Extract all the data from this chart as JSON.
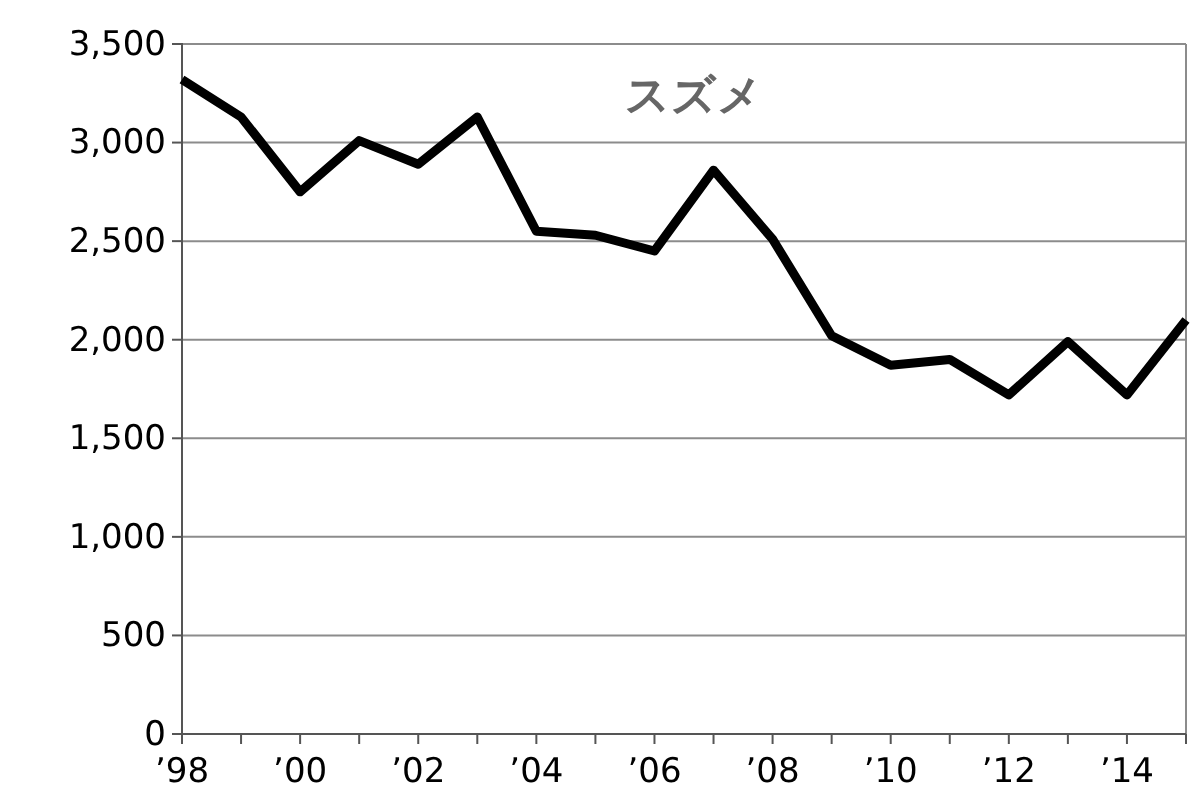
{
  "chart_data": {
    "type": "line",
    "title": "スズメ",
    "x": [
      1998,
      1999,
      2000,
      2001,
      2002,
      2003,
      2004,
      2005,
      2006,
      2007,
      2008,
      2009,
      2010,
      2011,
      2012,
      2013,
      2014,
      2015
    ],
    "series": [
      {
        "color": "#000000",
        "values": [
          3320,
          3130,
          2750,
          3010,
          2890,
          3130,
          2550,
          2530,
          2450,
          2860,
          2510,
          2020,
          1870,
          1900,
          1720,
          1990,
          1720,
          2100
        ]
      }
    ],
    "xlim": [
      1998,
      2015
    ],
    "xticks": [
      {
        "value": 1998,
        "label": "’98"
      },
      {
        "value": 1999,
        "label": null
      },
      {
        "value": 2000,
        "label": "’00"
      },
      {
        "value": 2001,
        "label": null
      },
      {
        "value": 2002,
        "label": "’02"
      },
      {
        "value": 2003,
        "label": null
      },
      {
        "value": 2004,
        "label": "’04"
      },
      {
        "value": 2005,
        "label": null
      },
      {
        "value": 2006,
        "label": "’06"
      },
      {
        "value": 2007,
        "label": null
      },
      {
        "value": 2008,
        "label": "’08"
      },
      {
        "value": 2009,
        "label": null
      },
      {
        "value": 2010,
        "label": "’10"
      },
      {
        "value": 2011,
        "label": null
      },
      {
        "value": 2012,
        "label": "’12"
      },
      {
        "value": 2013,
        "label": null
      },
      {
        "value": 2014,
        "label": "’14"
      },
      {
        "value": 2015,
        "label": null
      }
    ],
    "ylim": [
      0,
      3500
    ],
    "yticks": [
      0,
      {
        "value": 500,
        "label": "500"
      },
      {
        "value": 1000,
        "label": "1,000"
      },
      {
        "value": 1500,
        "label": "1,500"
      },
      {
        "value": 2000,
        "label": "2,000"
      },
      {
        "value": 2500,
        "label": "2,500"
      },
      {
        "value": 3000,
        "label": "3,000"
      },
      {
        "value": 3500,
        "label": "3,500"
      }
    ],
    "grid": "y",
    "marker": "none",
    "line_style": "solid",
    "legend": false
  }
}
